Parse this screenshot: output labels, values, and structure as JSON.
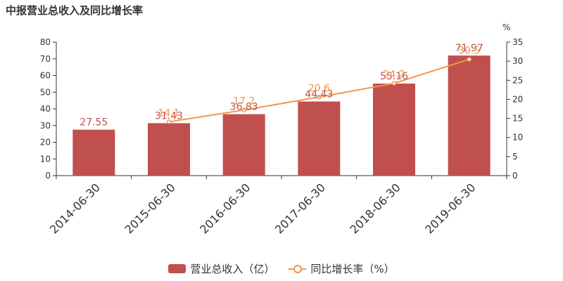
{
  "chart_data": {
    "type": "bar",
    "title": "中报营业总收入及同比增长率",
    "categories": [
      "2014-06-30",
      "2015-06-30",
      "2016-06-30",
      "2017-06-30",
      "2018-06-30",
      "2019-06-30"
    ],
    "series": [
      {
        "name": "营业总收入（亿）",
        "type": "bar",
        "axis": "left",
        "color": "#c0504d",
        "values": [
          27.55,
          31.43,
          36.83,
          44.43,
          55.16,
          71.97
        ],
        "labels": [
          "27.55",
          "31.43",
          "36.83",
          "44.43",
          "55.16",
          "71.97"
        ]
      },
      {
        "name": "同比增长率（%）",
        "type": "line",
        "axis": "right",
        "color": "#f0964a",
        "values": [
          null,
          14.1,
          17.2,
          20.6,
          24.2,
          30.5
        ],
        "labels": [
          "",
          "14.1",
          "17.2",
          "20.6",
          "24.2",
          "30.5"
        ]
      }
    ],
    "y_left": {
      "min": 0,
      "max": 80,
      "ticks": [
        0,
        10,
        20,
        30,
        40,
        50,
        60,
        70,
        80
      ]
    },
    "y_right": {
      "min": 0,
      "max": 35,
      "ticks": [
        0,
        5,
        10,
        15,
        20,
        25,
        30,
        35
      ],
      "unit_label": "%"
    },
    "grid": false,
    "legend_position": "bottom-center"
  }
}
